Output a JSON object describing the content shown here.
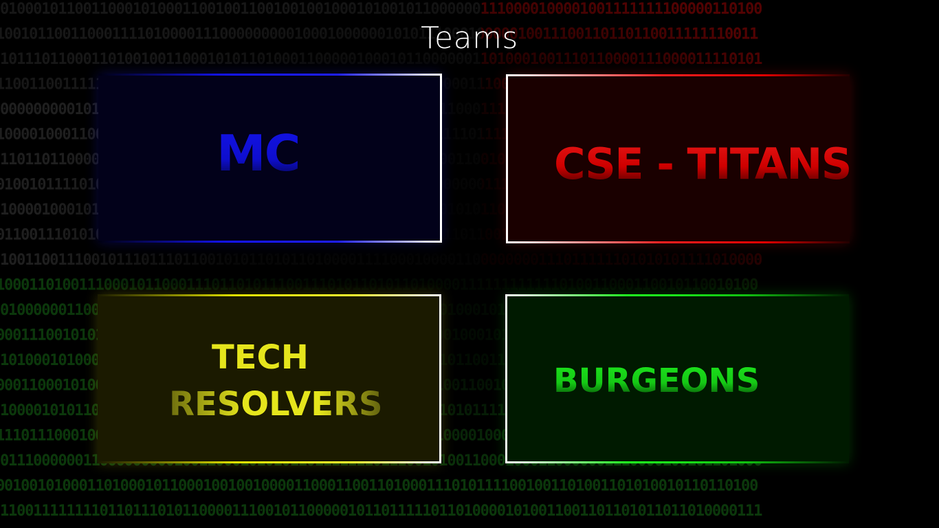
{
  "page": {
    "title": "Teams"
  },
  "teams": [
    {
      "id": "mc",
      "label": "MC",
      "color": "#1a1aff"
    },
    {
      "id": "cse-titans",
      "label": "CSE - TITANS",
      "color": "#ff1a1a"
    },
    {
      "id": "tech-resolvers",
      "label_line1": "TECH",
      "label_line2": "RESOLVERS",
      "color": "#ffff20"
    },
    {
      "id": "burgeons",
      "label": "BURGEONS",
      "color": "#20ff20"
    }
  ],
  "background": {
    "style": "binary-digits",
    "colors": [
      "#2a2a2a",
      "#5a0000",
      "#0a3a0a"
    ]
  }
}
